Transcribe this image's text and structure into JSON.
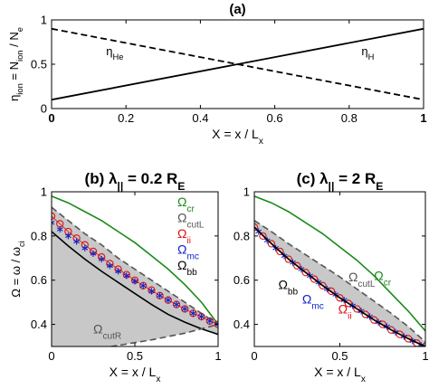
{
  "chart_data": [
    {
      "panel": "a",
      "type": "line",
      "title": "(a)",
      "xlabel": "X = x / L",
      "xlabel_sub": "x",
      "ylabel": "η",
      "ylabel_sub": "ion",
      "ylabel_rest": " = N",
      "ylabel_sub2": "ion",
      "ylabel_rest2": " / N",
      "ylabel_sub3": "e",
      "xlim": [
        0,
        1
      ],
      "ylim": [
        0,
        1
      ],
      "xticks": [
        "0",
        "0.2",
        "0.4",
        "0.6",
        "0.8",
        "1"
      ],
      "yticks": [
        "0",
        "0.5",
        "1"
      ],
      "xtick_values": [
        0,
        0.2,
        0.4,
        0.6,
        0.8,
        1
      ],
      "ytick_values": [
        0,
        0.5,
        1
      ],
      "series": [
        {
          "name": "η",
          "name_sub": "He",
          "style": "dashed",
          "x": [
            0,
            1
          ],
          "y": [
            0.9,
            0.1
          ],
          "label_at": [
            0.17,
            0.6
          ]
        },
        {
          "name": "η",
          "name_sub": "H",
          "style": "solid",
          "x": [
            0,
            1
          ],
          "y": [
            0.1,
            0.9
          ],
          "label_at": [
            0.85,
            0.6
          ]
        }
      ]
    },
    {
      "panel": "b",
      "type": "line",
      "title": "(b) λ",
      "title_sub": "||",
      "title_rest": " = 0.2 R",
      "title_sub2": "E",
      "xlabel": "X = x / L",
      "xlabel_sub": "x",
      "ylabel": "Ω = ω / ω",
      "ylabel_sub": "ci",
      "xlim": [
        0,
        1
      ],
      "ylim": [
        0.3,
        1
      ],
      "xticks": [
        "0",
        "0.5",
        "1"
      ],
      "yticks": [
        "0.4",
        "0.6",
        "0.8",
        "1"
      ],
      "xtick_values": [
        0,
        0.5,
        1
      ],
      "ytick_values": [
        0.4,
        0.6,
        0.8,
        1
      ],
      "shaded_regions": [
        {
          "between": [
            "cutL",
            "bb"
          ]
        },
        {
          "between": [
            "cutR",
            "bb"
          ]
        }
      ],
      "series": [
        {
          "name": "Ω",
          "name_sub": "cr",
          "key": "cr",
          "color": "#1a8a1a",
          "style": "solid",
          "x": [
            0,
            0.1,
            0.2,
            0.3,
            0.4,
            0.5,
            0.6,
            0.7,
            0.8,
            0.9,
            1
          ],
          "y": [
            0.98,
            0.95,
            0.91,
            0.87,
            0.82,
            0.77,
            0.71,
            0.65,
            0.58,
            0.5,
            0.4
          ]
        },
        {
          "name": "Ω",
          "name_sub": "cutL",
          "key": "cutL",
          "color": "#555555",
          "style": "dashed",
          "x": [
            0,
            0.1,
            0.2,
            0.3,
            0.4,
            0.5,
            0.6,
            0.7,
            0.8,
            0.9,
            1
          ],
          "y": [
            0.93,
            0.87,
            0.81,
            0.76,
            0.7,
            0.65,
            0.6,
            0.55,
            0.5,
            0.45,
            0.4
          ]
        },
        {
          "name": "Ω",
          "name_sub": "ii",
          "key": "ii",
          "color": "#dd1111",
          "style": "circles",
          "x": [
            0,
            0.05,
            0.1,
            0.15,
            0.2,
            0.25,
            0.3,
            0.35,
            0.4,
            0.45,
            0.5,
            0.55,
            0.6,
            0.65,
            0.7,
            0.75,
            0.8,
            0.85,
            0.9,
            0.95,
            1
          ],
          "y": [
            0.89,
            0.855,
            0.82,
            0.79,
            0.76,
            0.73,
            0.705,
            0.675,
            0.65,
            0.625,
            0.6,
            0.575,
            0.555,
            0.53,
            0.51,
            0.49,
            0.47,
            0.45,
            0.435,
            0.415,
            0.4
          ]
        },
        {
          "name": "Ω",
          "name_sub": "mc",
          "key": "mc",
          "color": "#1122cc",
          "style": "stars",
          "x": [
            0,
            0.05,
            0.1,
            0.15,
            0.2,
            0.25,
            0.3,
            0.35,
            0.4,
            0.45,
            0.5,
            0.55,
            0.6,
            0.65,
            0.7,
            0.75,
            0.8,
            0.85,
            0.9,
            0.95,
            1
          ],
          "y": [
            0.86,
            0.83,
            0.8,
            0.775,
            0.745,
            0.72,
            0.695,
            0.665,
            0.64,
            0.62,
            0.595,
            0.575,
            0.55,
            0.53,
            0.51,
            0.49,
            0.47,
            0.45,
            0.435,
            0.415,
            0.4
          ]
        },
        {
          "name": "Ω",
          "name_sub": "bb",
          "key": "bb",
          "color": "#000000",
          "style": "solid",
          "x": [
            0,
            0.1,
            0.2,
            0.3,
            0.4,
            0.5,
            0.6,
            0.7,
            0.8,
            0.9,
            1
          ],
          "y": [
            0.82,
            0.755,
            0.695,
            0.64,
            0.59,
            0.54,
            0.49,
            0.445,
            0.41,
            0.38,
            0.355
          ]
        },
        {
          "name": "Ω",
          "name_sub": "cutR",
          "key": "cutR",
          "color": "#555555",
          "style": "dashed",
          "x": [
            0,
            0.2,
            0.4,
            0.6,
            0.8,
            1
          ],
          "y": [
            0.26,
            0.28,
            0.305,
            0.33,
            0.36,
            0.4
          ]
        }
      ],
      "legend": [
        {
          "text": "Ω",
          "sub": "cr",
          "color": "#1a8a1a"
        },
        {
          "text": "Ω",
          "sub": "cutL",
          "color": "#555555"
        },
        {
          "text": "Ω",
          "sub": "ii",
          "color": "#dd1111"
        },
        {
          "text": "Ω",
          "sub": "mc",
          "color": "#1122cc"
        },
        {
          "text": "Ω",
          "sub": "bb",
          "color": "#000000"
        }
      ],
      "annotations": [
        {
          "text": "Ω",
          "sub": "cutR",
          "color": "#555555",
          "at": [
            0.25,
            0.36
          ]
        }
      ]
    },
    {
      "panel": "c",
      "type": "line",
      "title": "(c) λ",
      "title_sub": "||",
      "title_rest": " = 2 R",
      "title_sub2": "E",
      "xlabel": "X = x / L",
      "xlabel_sub": "x",
      "xlim": [
        0,
        1
      ],
      "ylim": [
        0.3,
        1
      ],
      "xticks": [
        "0",
        "0.5",
        "1"
      ],
      "yticks": [
        "0.4",
        "0.6",
        "0.8",
        "1"
      ],
      "xtick_values": [
        0,
        0.5,
        1
      ],
      "ytick_values": [
        0.4,
        0.6,
        0.8,
        1
      ],
      "shaded_regions": [
        {
          "between": [
            "cutL",
            "bb"
          ]
        }
      ],
      "series": [
        {
          "name": "Ω",
          "name_sub": "cr",
          "key": "cr",
          "color": "#1a8a1a",
          "style": "solid",
          "x": [
            0,
            0.1,
            0.2,
            0.3,
            0.4,
            0.5,
            0.6,
            0.7,
            0.8,
            0.9,
            1
          ],
          "y": [
            0.98,
            0.95,
            0.91,
            0.86,
            0.81,
            0.75,
            0.69,
            0.62,
            0.54,
            0.46,
            0.37
          ]
        },
        {
          "name": "Ω",
          "name_sub": "cutL",
          "key": "cutL",
          "color": "#555555",
          "style": "dashed",
          "x": [
            0,
            0.1,
            0.2,
            0.3,
            0.4,
            0.5,
            0.6,
            0.7,
            0.8,
            0.9,
            1
          ],
          "y": [
            0.87,
            0.82,
            0.765,
            0.715,
            0.665,
            0.615,
            0.56,
            0.505,
            0.45,
            0.39,
            0.32
          ]
        },
        {
          "name": "Ω",
          "name_sub": "ii",
          "key": "ii",
          "color": "#dd1111",
          "style": "circles",
          "x": [
            0,
            0.05,
            0.1,
            0.15,
            0.2,
            0.25,
            0.3,
            0.35,
            0.4,
            0.45,
            0.5,
            0.55,
            0.6,
            0.65,
            0.7,
            0.75,
            0.8,
            0.85,
            0.9,
            0.95,
            1
          ],
          "y": [
            0.84,
            0.8,
            0.765,
            0.73,
            0.695,
            0.665,
            0.635,
            0.605,
            0.575,
            0.55,
            0.52,
            0.495,
            0.47,
            0.445,
            0.42,
            0.4,
            0.375,
            0.355,
            0.335,
            0.315,
            0.3
          ]
        },
        {
          "name": "Ω",
          "name_sub": "mc",
          "key": "mc",
          "color": "#1122cc",
          "style": "stars",
          "x": [
            0.025,
            0.075,
            0.125,
            0.175,
            0.225,
            0.275,
            0.325,
            0.375,
            0.425,
            0.475,
            0.525,
            0.575,
            0.625,
            0.675,
            0.725,
            0.775,
            0.825,
            0.875,
            0.925,
            0.975
          ],
          "y": [
            0.82,
            0.78,
            0.745,
            0.71,
            0.68,
            0.65,
            0.62,
            0.59,
            0.56,
            0.535,
            0.51,
            0.485,
            0.46,
            0.435,
            0.41,
            0.39,
            0.365,
            0.345,
            0.325,
            0.305
          ]
        },
        {
          "name": "Ω",
          "name_sub": "bb",
          "key": "bb",
          "color": "#000000",
          "style": "solid",
          "x": [
            0,
            0.1,
            0.2,
            0.3,
            0.4,
            0.5,
            0.6,
            0.7,
            0.8,
            0.9,
            1
          ],
          "y": [
            0.84,
            0.765,
            0.695,
            0.635,
            0.575,
            0.52,
            0.47,
            0.42,
            0.375,
            0.335,
            0.3
          ]
        }
      ],
      "annotations": [
        {
          "text": "Ω",
          "sub": "cr",
          "color": "#1a8a1a",
          "at": [
            0.7,
            0.6
          ]
        },
        {
          "text": "Ω",
          "sub": "cutL",
          "color": "#555555",
          "at": [
            0.55,
            0.595
          ]
        },
        {
          "text": "Ω",
          "sub": "bb",
          "color": "#000000",
          "at": [
            0.14,
            0.56
          ]
        },
        {
          "text": "Ω",
          "sub": "mc",
          "color": "#1122cc",
          "at": [
            0.28,
            0.495
          ]
        },
        {
          "text": "Ω",
          "sub": "ii",
          "color": "#dd1111",
          "at": [
            0.49,
            0.45
          ]
        }
      ]
    }
  ]
}
